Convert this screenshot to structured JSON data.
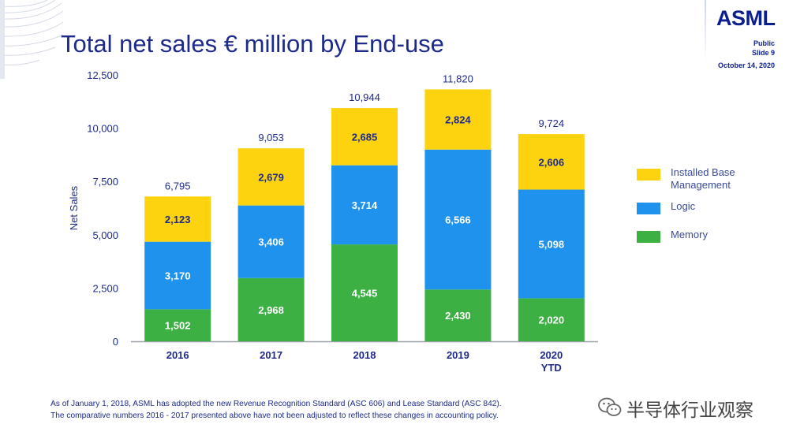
{
  "header": {
    "title": "Total net sales € million by End-use",
    "logo": "ASML",
    "classification": "Public",
    "slide": "Slide 9",
    "date": "October 14, 2020"
  },
  "chart_data": {
    "type": "bar",
    "stacked": true,
    "title": "Total net sales € million by End-use",
    "ylabel": "Net Sales",
    "xlabel": "",
    "ylim": [
      0,
      12500
    ],
    "yticks": [
      0,
      2500,
      5000,
      7500,
      10000,
      12500
    ],
    "ytick_labels": [
      "0",
      "2,500",
      "5,000",
      "7,500",
      "10,000",
      "12,500"
    ],
    "categories": [
      [
        "2016"
      ],
      [
        "2017"
      ],
      [
        "2018"
      ],
      [
        "2019"
      ],
      [
        "2020",
        "YTD"
      ]
    ],
    "series": [
      {
        "name": "Memory",
        "color": "#3cb043",
        "values": [
          1502,
          2968,
          4545,
          2430,
          2020
        ],
        "labels": [
          "1,502",
          "2,968",
          "4,545",
          "2,430",
          "2,020"
        ]
      },
      {
        "name": "Logic",
        "color": "#1f92ee",
        "values": [
          3170,
          3406,
          3714,
          6566,
          5098
        ],
        "labels": [
          "3,170",
          "3,406",
          "3,714",
          "6,566",
          "5,098"
        ]
      },
      {
        "name": "Installed Base Management",
        "color": "#fdd20f",
        "values": [
          2123,
          2679,
          2685,
          2824,
          2606
        ],
        "labels": [
          "2,123",
          "2,679",
          "2,685",
          "2,824",
          "2,606"
        ]
      }
    ],
    "totals": [
      6795,
      9053,
      10944,
      11820,
      9724
    ],
    "total_labels": [
      "6,795",
      "9,053",
      "10,944",
      "11,820",
      "9,724"
    ],
    "legend": {
      "placement": "right",
      "entries": [
        {
          "lines": [
            "Installed Base",
            "Management"
          ],
          "color": "#fdd20f"
        },
        {
          "lines": [
            "Logic"
          ],
          "color": "#1f92ee"
        },
        {
          "lines": [
            "Memory"
          ],
          "color": "#3cb043"
        }
      ]
    }
  },
  "footnote": {
    "line1": "As of January 1, 2018, ASML has adopted the new Revenue Recognition Standard (ASC 606) and Lease Standard (ASC 842).",
    "line2": "The comparative numbers 2016 - 2017 presented above have not been adjusted to reflect these changes in accounting policy."
  },
  "watermark": {
    "icon": "wechat-icon",
    "text": "半导体行业观察"
  }
}
